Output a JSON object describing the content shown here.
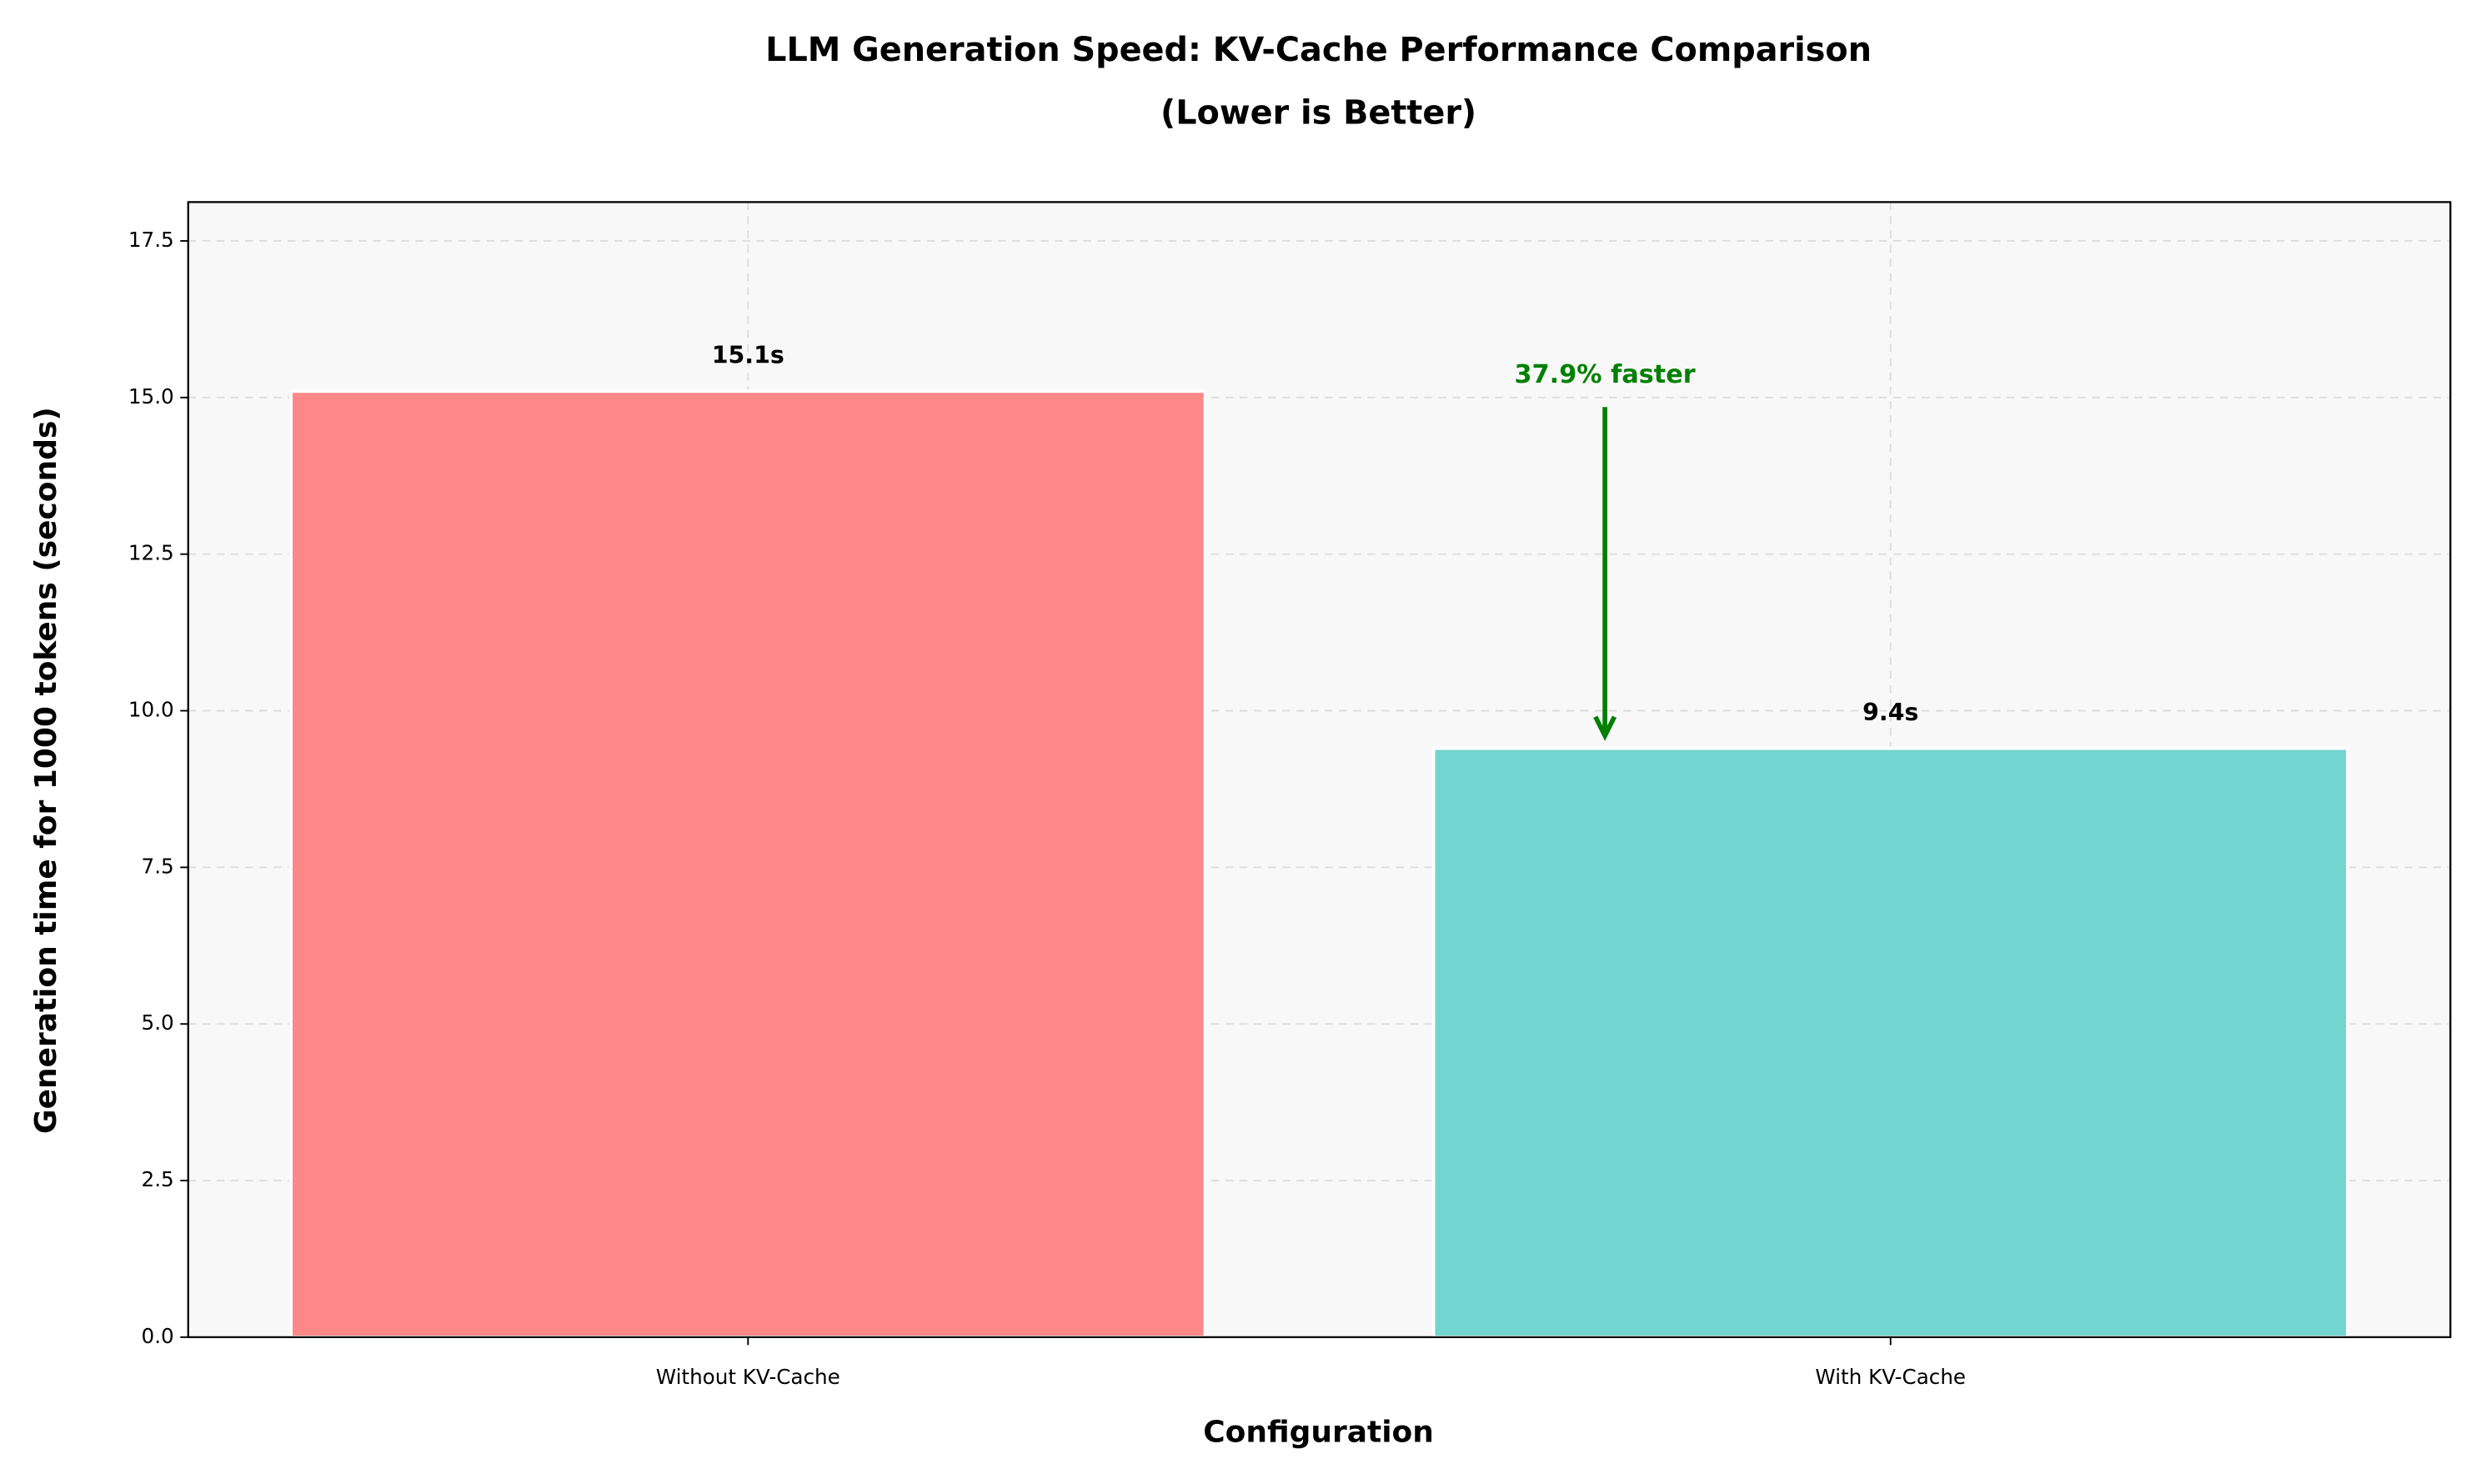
{
  "chart_data": {
    "type": "bar",
    "title": "LLM Generation Speed: KV-Cache Performance Comparison",
    "subtitle": "(Lower is Better)",
    "x_label": "Configuration",
    "y_label": "Generation time for 1000 tokens (seconds)",
    "categories": [
      "Without KV-Cache",
      "With KV-Cache"
    ],
    "values": [
      15.1,
      9.4
    ],
    "value_labels": [
      "15.1s",
      "9.4s"
    ],
    "colors": [
      "#fe8888",
      "#72d5cf"
    ],
    "ylim": [
      0,
      18.12
    ],
    "yticks": [
      {
        "value": 0,
        "label": "0.0"
      },
      2.5,
      {
        "value": 5,
        "label": "5.0"
      },
      7.5,
      {
        "value": 10,
        "label": "10.0"
      },
      12.5,
      {
        "value": 15,
        "label": "15.0"
      },
      17.5
    ],
    "grid": true,
    "annotation": {
      "text": "37.9% faster",
      "color": "#008000"
    }
  }
}
